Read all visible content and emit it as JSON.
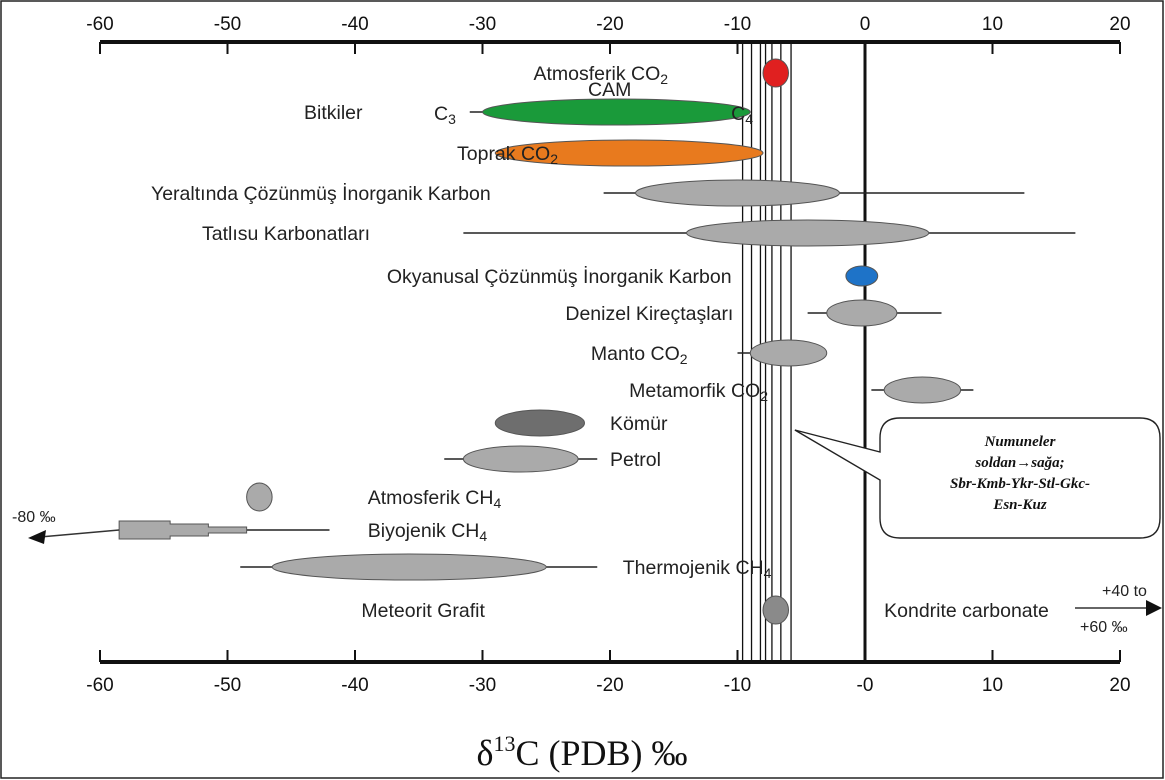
{
  "chart_data": {
    "type": "range",
    "xlabel": {
      "main": "δ",
      "sup": "13",
      "rest": "C (PDB) ‰"
    },
    "xlim": [
      -60,
      20
    ],
    "ticks_top": [
      "-60",
      "-50",
      "-40",
      "-30",
      "-20",
      "-10",
      "0",
      "10",
      "20"
    ],
    "ticks_bottom": [
      "-60",
      "-50",
      "-40",
      "-30",
      "-20",
      "-10",
      "-0",
      "10",
      "20"
    ],
    "tick_values": [
      -60,
      -50,
      -40,
      -30,
      -20,
      -10,
      0,
      10,
      20
    ],
    "sample_lines": [
      -9.6,
      -8.9,
      -8.2,
      -7.8,
      -7.3,
      -6.6,
      -5.8
    ],
    "zero_line": 0,
    "groups": [
      {
        "label_parts": [
          {
            "t": "Atmosferik CO"
          },
          {
            "t": "2",
            "sub": true
          }
        ],
        "label_x": -26,
        "line": null,
        "ellipse": [
          -8,
          -6
        ],
        "color": "#e02020"
      },
      {
        "label_parts": [
          {
            "t": "Bitkiler"
          }
        ],
        "label_x": -44,
        "line": [
          -31,
          -9
        ],
        "ellipse": [
          -30,
          -9
        ],
        "color": "#1a9a3a"
      },
      {
        "label_parts": [
          {
            "t": "Toprak CO"
          },
          {
            "t": "2",
            "sub": true
          }
        ],
        "label_x": -32,
        "line": null,
        "ellipse": [
          -29,
          -8
        ],
        "color": "#e87a1e"
      },
      {
        "label_parts": [
          {
            "t": "Yeraltında Çözünmüş İnorganik Karbon"
          }
        ],
        "label_x": -56,
        "line": [
          -20.5,
          12.5
        ],
        "ellipse": [
          -18,
          -2
        ],
        "color": "#aaaaaa"
      },
      {
        "label_parts": [
          {
            "t": "Tatlısu Karbonatları"
          }
        ],
        "label_x": -52,
        "line": [
          -31.5,
          16.5
        ],
        "ellipse": [
          -14,
          5
        ],
        "color": "#aaaaaa"
      },
      {
        "label_parts": [
          {
            "t": "Okyanusal Çözünmüş İnorganik Karbon"
          }
        ],
        "label_x": -37.5,
        "line": null,
        "ellipse": [
          -1.5,
          1
        ],
        "color": "#1e73c8"
      },
      {
        "label_parts": [
          {
            "t": "Denizel Kireçtaşları"
          }
        ],
        "label_x": -23.5,
        "line": [
          -4.5,
          6
        ],
        "ellipse": [
          -3,
          2.5
        ],
        "color": "#aaaaaa"
      },
      {
        "label_parts": [
          {
            "t": "Manto CO"
          },
          {
            "t": "2",
            "sub": true
          }
        ],
        "label_x": -21.5,
        "line": [
          -10,
          -3
        ],
        "ellipse": [
          -9,
          -3
        ],
        "color": "#aaaaaa"
      },
      {
        "label_parts": [
          {
            "t": "Metamorfik CO"
          },
          {
            "t": "2",
            "sub": true
          }
        ],
        "label_x": -18.5,
        "line": [
          0.5,
          8.5
        ],
        "ellipse": [
          1.5,
          7.5
        ],
        "color": "#aaaaaa"
      },
      {
        "label_parts": [
          {
            "t": "Kömür"
          }
        ],
        "label_x": -20,
        "line": null,
        "ellipse": [
          -29,
          -22
        ],
        "color": "#6e6e6e"
      },
      {
        "label_parts": [
          {
            "t": "Petrol"
          }
        ],
        "label_x": -20,
        "line": [
          -33,
          -21
        ],
        "ellipse": [
          -31.5,
          -22.5
        ],
        "color": "#aaaaaa"
      },
      {
        "label_parts": [
          {
            "t": "Atmosferik CH"
          },
          {
            "t": "4",
            "sub": true
          }
        ],
        "label_x": -39,
        "line": null,
        "ellipse": [
          -48.5,
          -46.5
        ],
        "color": "#aaaaaa"
      },
      {
        "label_parts": [
          {
            "t": "Biyojenik CH"
          },
          {
            "t": "4",
            "sub": true
          }
        ],
        "label_x": -39,
        "line": [
          -52,
          -42
        ],
        "ellipse": null,
        "color": "#aaaaaa"
      },
      {
        "label_parts": [
          {
            "t": "Thermojenik CH"
          },
          {
            "t": "4",
            "sub": true
          }
        ],
        "label_x": -19,
        "line": [
          -49,
          -21
        ],
        "ellipse": [
          -46.5,
          -25
        ],
        "color": "#aaaaaa"
      },
      {
        "label_parts": [
          {
            "t": "Meteorit Grafit"
          }
        ],
        "label_x": -39.5,
        "line": null,
        "ellipse": [
          -8,
          -6
        ],
        "color": "#8a8a8a"
      },
      {
        "label_parts": [
          {
            "t": "Kondrite carbonate"
          }
        ],
        "label_x": 1.5,
        "line": null,
        "ellipse": null,
        "color": "#aaaaaa"
      }
    ],
    "callout": {
      "lines": [
        "Numuneler",
        "soldan→sağa;",
        "Sbr-Kmb-Ykr-Stl-Gkc-",
        "Esn-Kuz"
      ],
      "pointer_x": -5.5
    },
    "notes": {
      "left_arrow": "-80 ‰",
      "right_arrow_1": "+40 to",
      "right_arrow_2": "+60 ‰",
      "plant_c3": "C3",
      "plant_c4": "C4",
      "plant_cam": "CAM"
    }
  }
}
